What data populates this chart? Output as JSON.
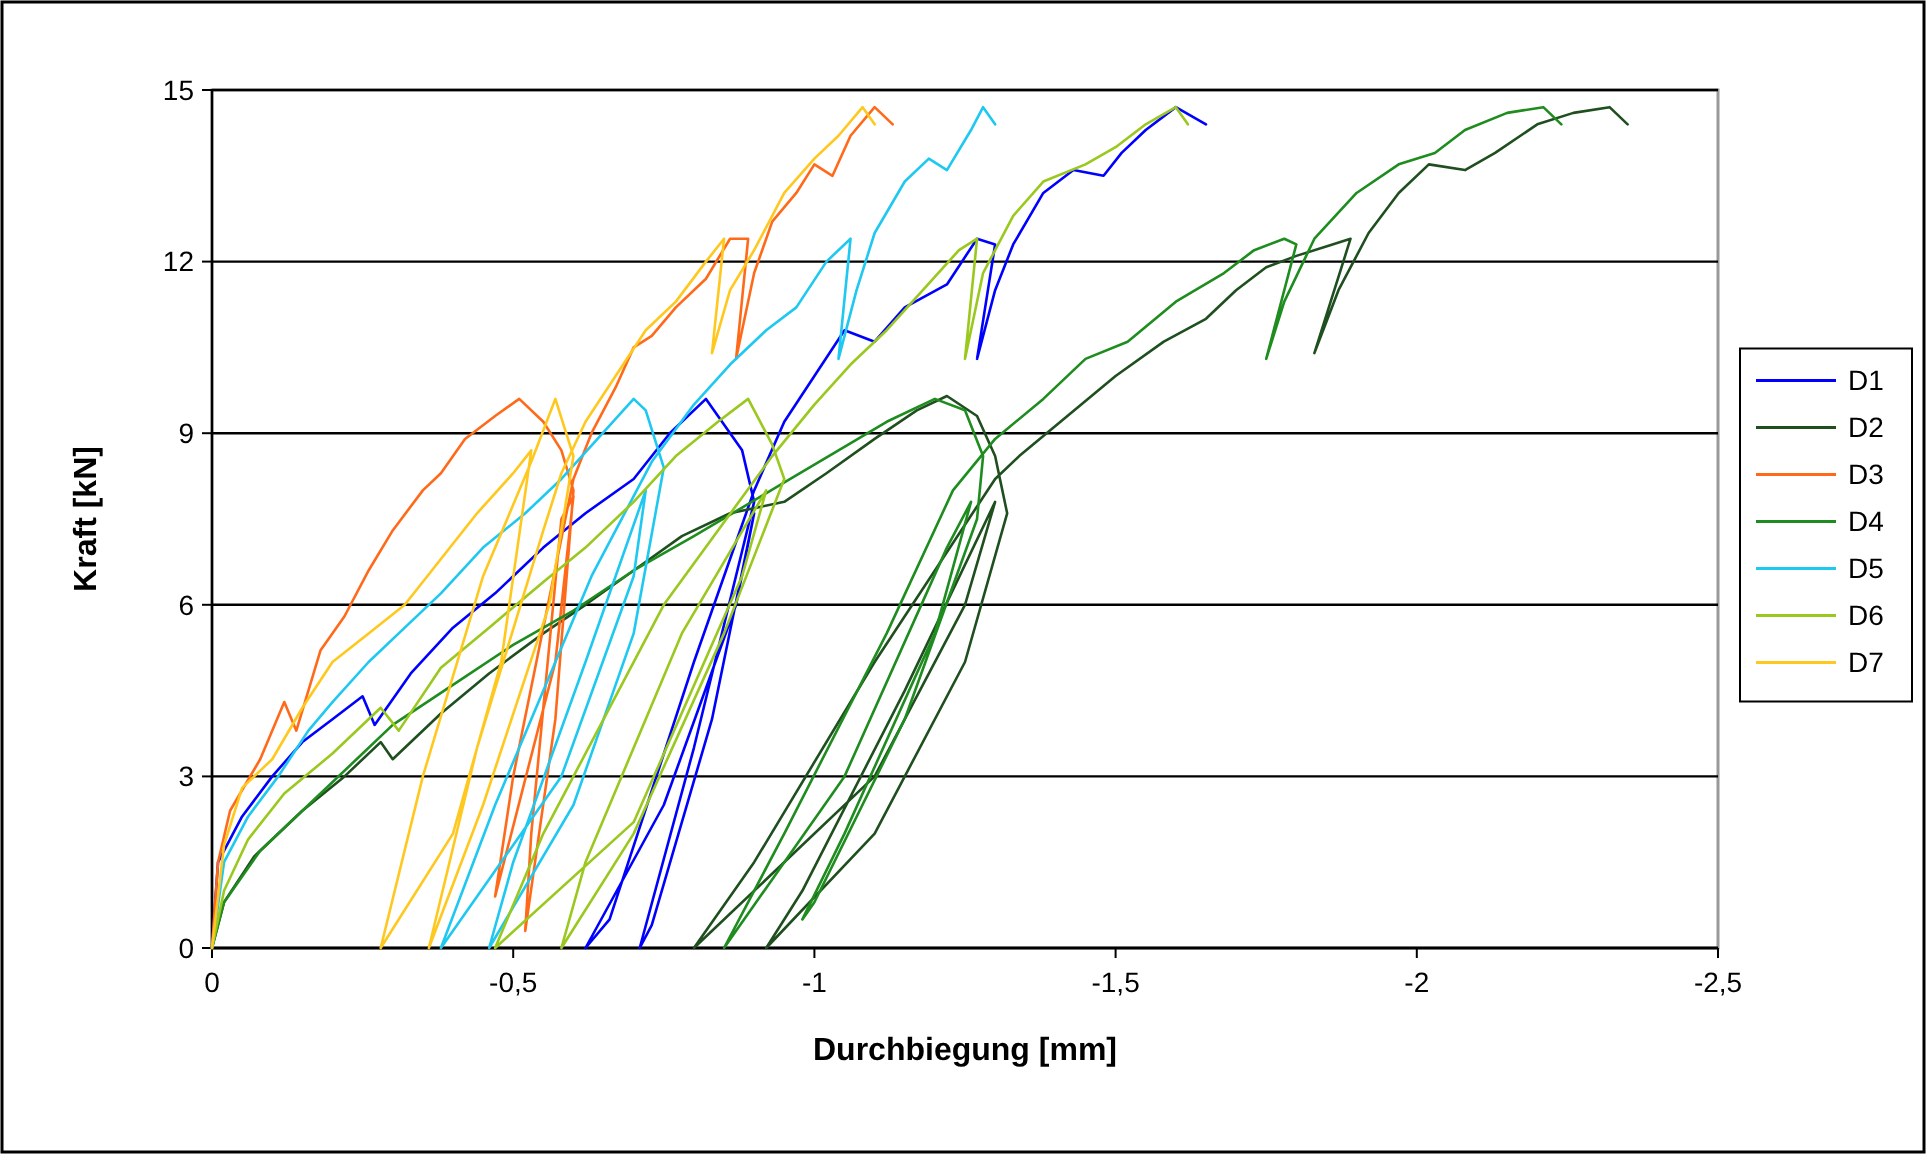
{
  "chart_data": {
    "type": "line",
    "xlabel": "Durchbiegung [mm]",
    "ylabel": "Kraft [kN]",
    "xlim": [
      0,
      -2.5
    ],
    "xticks": [
      0,
      {
        "value": -0.5,
        "label": "-0,5"
      },
      -1,
      {
        "value": -1.5,
        "label": "-1,5"
      },
      -2,
      {
        "value": -2.5,
        "label": "-2,5"
      }
    ],
    "ylim": [
      0,
      15
    ],
    "yticks": [
      0,
      3,
      6,
      9,
      12,
      15
    ],
    "grid": "y",
    "legend": "right",
    "marker": "none",
    "line_style": "solid",
    "series": [
      {
        "name": "D1",
        "color": "#0000ff",
        "x": [
          0,
          -0.01,
          -0.05,
          -0.1,
          -0.15,
          -0.2,
          -0.25,
          -0.27,
          -0.33,
          -0.4,
          -0.47,
          -0.55,
          -0.62,
          -0.7,
          -0.76,
          -0.82,
          -0.88,
          -0.9,
          -0.8,
          -0.71,
          -0.73,
          -0.83,
          -0.9,
          -0.87,
          -0.75,
          -0.62,
          -0.66,
          -0.8,
          -0.9,
          -0.95,
          -1.0,
          -1.05,
          -1.1,
          -1.15,
          -1.22,
          -1.27,
          -1.3,
          -1.27,
          -1.3,
          -1.33,
          -1.38,
          -1.43,
          -1.48,
          -1.51,
          -1.55,
          -1.6,
          -1.65
        ],
        "values": [
          0,
          1.5,
          2.3,
          3,
          3.6,
          4,
          4.4,
          3.9,
          4.8,
          5.6,
          6.2,
          7,
          7.6,
          8.2,
          9,
          9.6,
          8.7,
          7.8,
          3.5,
          0,
          0.4,
          4,
          7.6,
          6,
          2.5,
          0,
          0.5,
          5,
          8,
          9.2,
          10,
          10.8,
          10.6,
          11.2,
          11.6,
          12.4,
          12.3,
          10.3,
          11.5,
          12.3,
          13.2,
          13.6,
          13.5,
          13.9,
          14.3,
          14.7,
          14.4
        ]
      },
      {
        "name": "D2",
        "color": "#1f4f1f",
        "x": [
          0,
          -0.02,
          -0.07,
          -0.15,
          -0.22,
          -0.28,
          -0.3,
          -0.38,
          -0.46,
          -0.55,
          -0.62,
          -0.7,
          -0.78,
          -0.86,
          -0.95,
          -1.02,
          -1.1,
          -1.17,
          -1.22,
          -1.27,
          -1.3,
          -1.32,
          -1.25,
          -1.1,
          -0.92,
          -0.98,
          -1.15,
          -1.3,
          -1.25,
          -1.1,
          -0.8,
          -0.9,
          -1.1,
          -1.3,
          -1.34,
          -1.42,
          -1.5,
          -1.58,
          -1.65,
          -1.7,
          -1.75,
          -1.8,
          -1.86,
          -1.89,
          -1.83,
          -1.87,
          -1.92,
          -1.97,
          -2.02,
          -2.08,
          -2.13,
          -2.2,
          -2.26,
          -2.32,
          -2.35
        ],
        "values": [
          0,
          0.8,
          1.6,
          2.4,
          3,
          3.6,
          3.3,
          4.1,
          4.8,
          5.5,
          6,
          6.6,
          7.2,
          7.6,
          7.8,
          8.3,
          8.9,
          9.4,
          9.65,
          9.3,
          8.6,
          7.6,
          5,
          2,
          0,
          1,
          4.5,
          7.8,
          6,
          3,
          0,
          1.5,
          5,
          8.2,
          8.6,
          9.3,
          10,
          10.6,
          11,
          11.5,
          11.9,
          12.1,
          12.3,
          12.4,
          10.4,
          11.5,
          12.5,
          13.2,
          13.7,
          13.6,
          13.9,
          14.4,
          14.6,
          14.7,
          14.4
        ]
      },
      {
        "name": "D3",
        "color": "#ff6a1a",
        "x": [
          0,
          -0.01,
          -0.03,
          -0.08,
          -0.12,
          -0.14,
          -0.18,
          -0.22,
          -0.26,
          -0.3,
          -0.35,
          -0.38,
          -0.42,
          -0.47,
          -0.51,
          -0.55,
          -0.58,
          -0.6,
          -0.57,
          -0.52,
          -0.53,
          -0.58,
          -0.6,
          -0.57,
          -0.47,
          -0.5,
          -0.6,
          -0.63,
          -0.67,
          -0.7,
          -0.73,
          -0.77,
          -0.82,
          -0.86,
          -0.89,
          -0.87,
          -0.9,
          -0.93,
          -0.97,
          -1.0,
          -1.03,
          -1.06,
          -1.1,
          -1.13
        ],
        "values": [
          0,
          1.5,
          2.4,
          3.3,
          4.3,
          3.8,
          5.2,
          5.8,
          6.6,
          7.3,
          8,
          8.3,
          8.9,
          9.3,
          9.6,
          9.2,
          8.7,
          8,
          4,
          0.3,
          2,
          7.5,
          7.9,
          5,
          0.9,
          3,
          8.2,
          9,
          9.8,
          10.5,
          10.7,
          11.2,
          11.7,
          12.4,
          12.4,
          10.3,
          11.8,
          12.7,
          13.2,
          13.7,
          13.5,
          14.2,
          14.7,
          14.4
        ]
      },
      {
        "name": "D4",
        "color": "#1e8c1e",
        "x": [
          0,
          -0.02,
          -0.08,
          -0.16,
          -0.24,
          -0.3,
          -0.4,
          -0.5,
          -0.6,
          -0.7,
          -0.8,
          -0.88,
          -0.96,
          -1.04,
          -1.12,
          -1.2,
          -1.25,
          -1.28,
          -1.27,
          -1.15,
          -1.0,
          -0.98,
          -1.05,
          -1.2,
          -1.26,
          -1.22,
          -1.05,
          -0.85,
          -0.95,
          -1.12,
          -1.23,
          -1.3,
          -1.38,
          -1.45,
          -1.52,
          -1.6,
          -1.68,
          -1.73,
          -1.78,
          -1.8,
          -1.75,
          -1.78,
          -1.83,
          -1.9,
          -1.97,
          -2.03,
          -2.08,
          -2.15,
          -2.21,
          -2.24
        ],
        "values": [
          0,
          0.8,
          1.7,
          2.5,
          3.3,
          3.9,
          4.6,
          5.3,
          5.9,
          6.6,
          7.2,
          7.7,
          8.2,
          8.7,
          9.2,
          9.6,
          9.4,
          8.6,
          7.5,
          4,
          0.8,
          0.5,
          2,
          5.5,
          7.8,
          7,
          3,
          0,
          2,
          5.5,
          8,
          8.9,
          9.6,
          10.3,
          10.6,
          11.3,
          11.8,
          12.2,
          12.4,
          12.3,
          10.3,
          11.3,
          12.4,
          13.2,
          13.7,
          13.9,
          14.3,
          14.6,
          14.7,
          14.4
        ]
      },
      {
        "name": "D5",
        "color": "#1ec8f0",
        "x": [
          0,
          -0.02,
          -0.06,
          -0.11,
          -0.16,
          -0.2,
          -0.26,
          -0.32,
          -0.38,
          -0.45,
          -0.52,
          -0.58,
          -0.64,
          -0.7,
          -0.72,
          -0.75,
          -0.7,
          -0.6,
          -0.46,
          -0.5,
          -0.62,
          -0.72,
          -0.7,
          -0.58,
          -0.38,
          -0.47,
          -0.63,
          -0.73,
          -0.8,
          -0.86,
          -0.92,
          -0.97,
          -1.02,
          -1.06,
          -1.04,
          -1.07,
          -1.1,
          -1.15,
          -1.19,
          -1.22,
          -1.26,
          -1.28,
          -1.3
        ],
        "values": [
          0,
          1.5,
          2.3,
          3,
          3.8,
          4.3,
          5,
          5.6,
          6.2,
          7,
          7.6,
          8.2,
          8.9,
          9.6,
          9.4,
          8.4,
          5.5,
          2.5,
          0,
          1.5,
          5,
          8,
          6.5,
          3,
          0,
          2.5,
          6.5,
          8.5,
          9.5,
          10.2,
          10.8,
          11.2,
          12,
          12.4,
          10.3,
          11.5,
          12.5,
          13.4,
          13.8,
          13.6,
          14.3,
          14.7,
          14.4
        ]
      },
      {
        "name": "D6",
        "color": "#9ac81e",
        "x": [
          0,
          -0.02,
          -0.06,
          -0.12,
          -0.2,
          -0.28,
          -0.31,
          -0.38,
          -0.46,
          -0.55,
          -0.62,
          -0.7,
          -0.77,
          -0.84,
          -0.89,
          -0.93,
          -0.95,
          -0.85,
          -0.7,
          -0.58,
          -0.62,
          -0.78,
          -0.92,
          -0.88,
          -0.7,
          -0.47,
          -0.55,
          -0.75,
          -0.93,
          -1.0,
          -1.06,
          -1.12,
          -1.18,
          -1.24,
          -1.27,
          -1.25,
          -1.28,
          -1.33,
          -1.38,
          -1.45,
          -1.5,
          -1.55,
          -1.6,
          -1.62
        ],
        "values": [
          0,
          1,
          1.9,
          2.7,
          3.4,
          4.2,
          3.8,
          4.9,
          5.6,
          6.4,
          7,
          7.8,
          8.6,
          9.2,
          9.6,
          8.8,
          8.2,
          5.5,
          2,
          0,
          1.5,
          5.5,
          8,
          6.5,
          2.2,
          0,
          2,
          6,
          8.6,
          9.5,
          10.2,
          10.8,
          11.5,
          12.2,
          12.4,
          10.3,
          11.8,
          12.8,
          13.4,
          13.7,
          14,
          14.4,
          14.7,
          14.4
        ]
      },
      {
        "name": "D7",
        "color": "#ffc81e",
        "x": [
          0,
          -0.02,
          -0.05,
          -0.1,
          -0.15,
          -0.2,
          -0.26,
          -0.32,
          -0.38,
          -0.44,
          -0.5,
          -0.53,
          -0.48,
          -0.4,
          -0.28,
          -0.35,
          -0.45,
          -0.53,
          -0.57,
          -0.6,
          -0.56,
          -0.45,
          -0.36,
          -0.44,
          -0.55,
          -0.58,
          -0.62,
          -0.67,
          -0.72,
          -0.77,
          -0.82,
          -0.85,
          -0.83,
          -0.86,
          -0.9,
          -0.95,
          -1.0,
          -1.04,
          -1.08,
          -1.1
        ],
        "values": [
          0,
          1.8,
          2.8,
          3.3,
          4.2,
          5,
          5.5,
          6,
          6.8,
          7.6,
          8.3,
          8.7,
          5,
          2,
          0,
          3,
          6.5,
          8.5,
          9.6,
          8.6,
          6,
          2.5,
          0,
          3.5,
          7.3,
          8.3,
          9.2,
          10,
          10.8,
          11.3,
          12,
          12.4,
          10.4,
          11.5,
          12.2,
          13.2,
          13.8,
          14.2,
          14.7,
          14.4
        ]
      }
    ]
  }
}
